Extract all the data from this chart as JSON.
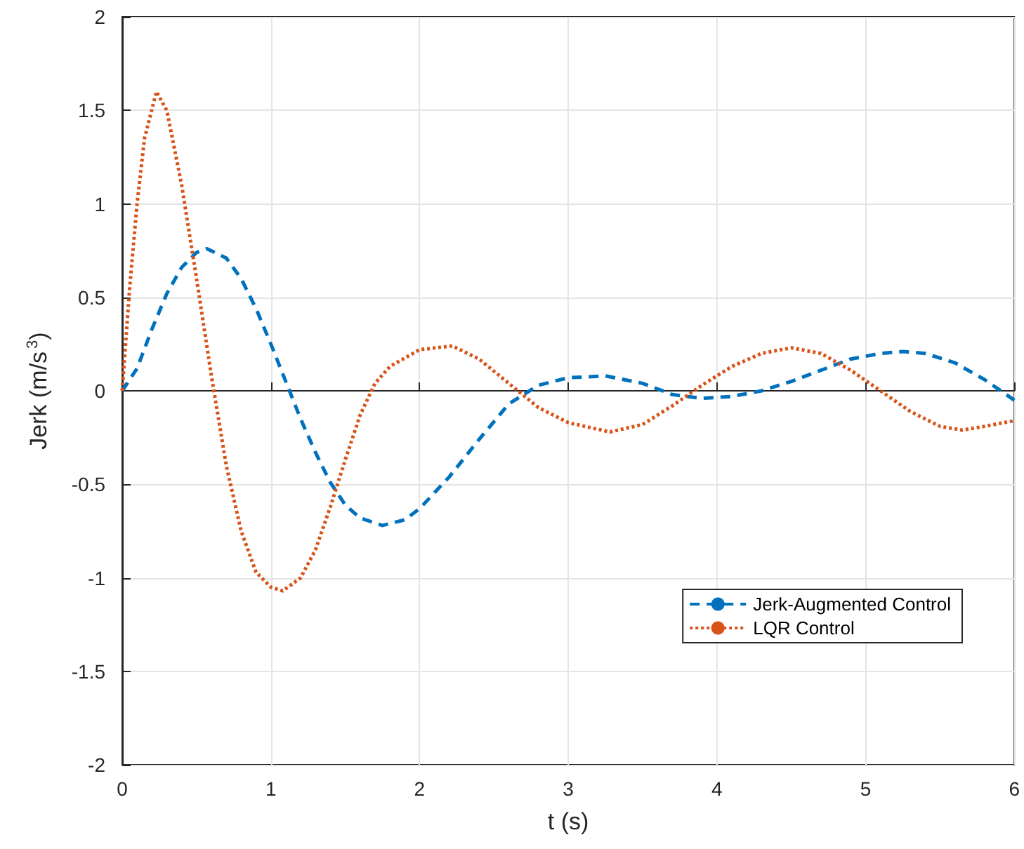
{
  "chart_data": {
    "type": "line",
    "xlabel": "t (s)",
    "ylabel": "Jerk (m/s$^{3}$)",
    "xlim": [
      0,
      6
    ],
    "xticks": [
      0,
      1,
      2,
      3,
      4,
      5,
      6
    ],
    "ylim": [
      -2,
      2
    ],
    "yticks": [
      -2,
      -1.5,
      -1,
      -0.5,
      0,
      0.5,
      1,
      1.5,
      2
    ],
    "grid": true,
    "legend": "bottom right",
    "marker": "none",
    "series": [
      {
        "name": "Jerk-Augmented Control",
        "color": "#0072bd",
        "line_style": "dashed",
        "x": [
          0,
          0.1,
          0.2,
          0.3,
          0.4,
          0.5,
          0.57,
          0.7,
          0.8,
          0.9,
          1.0,
          1.1,
          1.2,
          1.3,
          1.4,
          1.5,
          1.6,
          1.75,
          1.9,
          2.0,
          2.2,
          2.4,
          2.6,
          2.8,
          3.0,
          3.25,
          3.5,
          3.7,
          3.9,
          4.1,
          4.3,
          4.5,
          4.7,
          4.9,
          5.1,
          5.25,
          5.4,
          5.6,
          5.8,
          6.0
        ],
        "values": [
          0,
          0.12,
          0.33,
          0.52,
          0.66,
          0.74,
          0.76,
          0.71,
          0.6,
          0.44,
          0.25,
          0.05,
          -0.15,
          -0.33,
          -0.49,
          -0.61,
          -0.68,
          -0.72,
          -0.69,
          -0.63,
          -0.46,
          -0.26,
          -0.07,
          0.03,
          0.07,
          0.08,
          0.04,
          -0.02,
          -0.04,
          -0.03,
          0.0,
          0.05,
          0.11,
          0.17,
          0.2,
          0.21,
          0.2,
          0.15,
          0.06,
          -0.05
        ]
      },
      {
        "name": "LQR Control",
        "color": "#d95319",
        "line_style": "dotted",
        "x": [
          0,
          0.05,
          0.1,
          0.15,
          0.23,
          0.3,
          0.4,
          0.5,
          0.6,
          0.7,
          0.8,
          0.9,
          1.0,
          1.08,
          1.2,
          1.3,
          1.4,
          1.5,
          1.6,
          1.7,
          1.8,
          2.0,
          2.22,
          2.4,
          2.6,
          2.8,
          3.0,
          3.28,
          3.5,
          3.7,
          3.9,
          4.1,
          4.3,
          4.5,
          4.7,
          4.9,
          5.1,
          5.3,
          5.5,
          5.65,
          5.8,
          6.0
        ],
        "values": [
          0,
          0.55,
          1.0,
          1.35,
          1.6,
          1.5,
          1.1,
          0.6,
          0.08,
          -0.4,
          -0.75,
          -0.97,
          -1.05,
          -1.07,
          -1.0,
          -0.85,
          -0.62,
          -0.37,
          -0.13,
          0.04,
          0.13,
          0.22,
          0.24,
          0.17,
          0.04,
          -0.09,
          -0.17,
          -0.22,
          -0.18,
          -0.08,
          0.03,
          0.13,
          0.2,
          0.23,
          0.2,
          0.11,
          0.0,
          -0.11,
          -0.19,
          -0.21,
          -0.19,
          -0.16
        ]
      }
    ]
  }
}
